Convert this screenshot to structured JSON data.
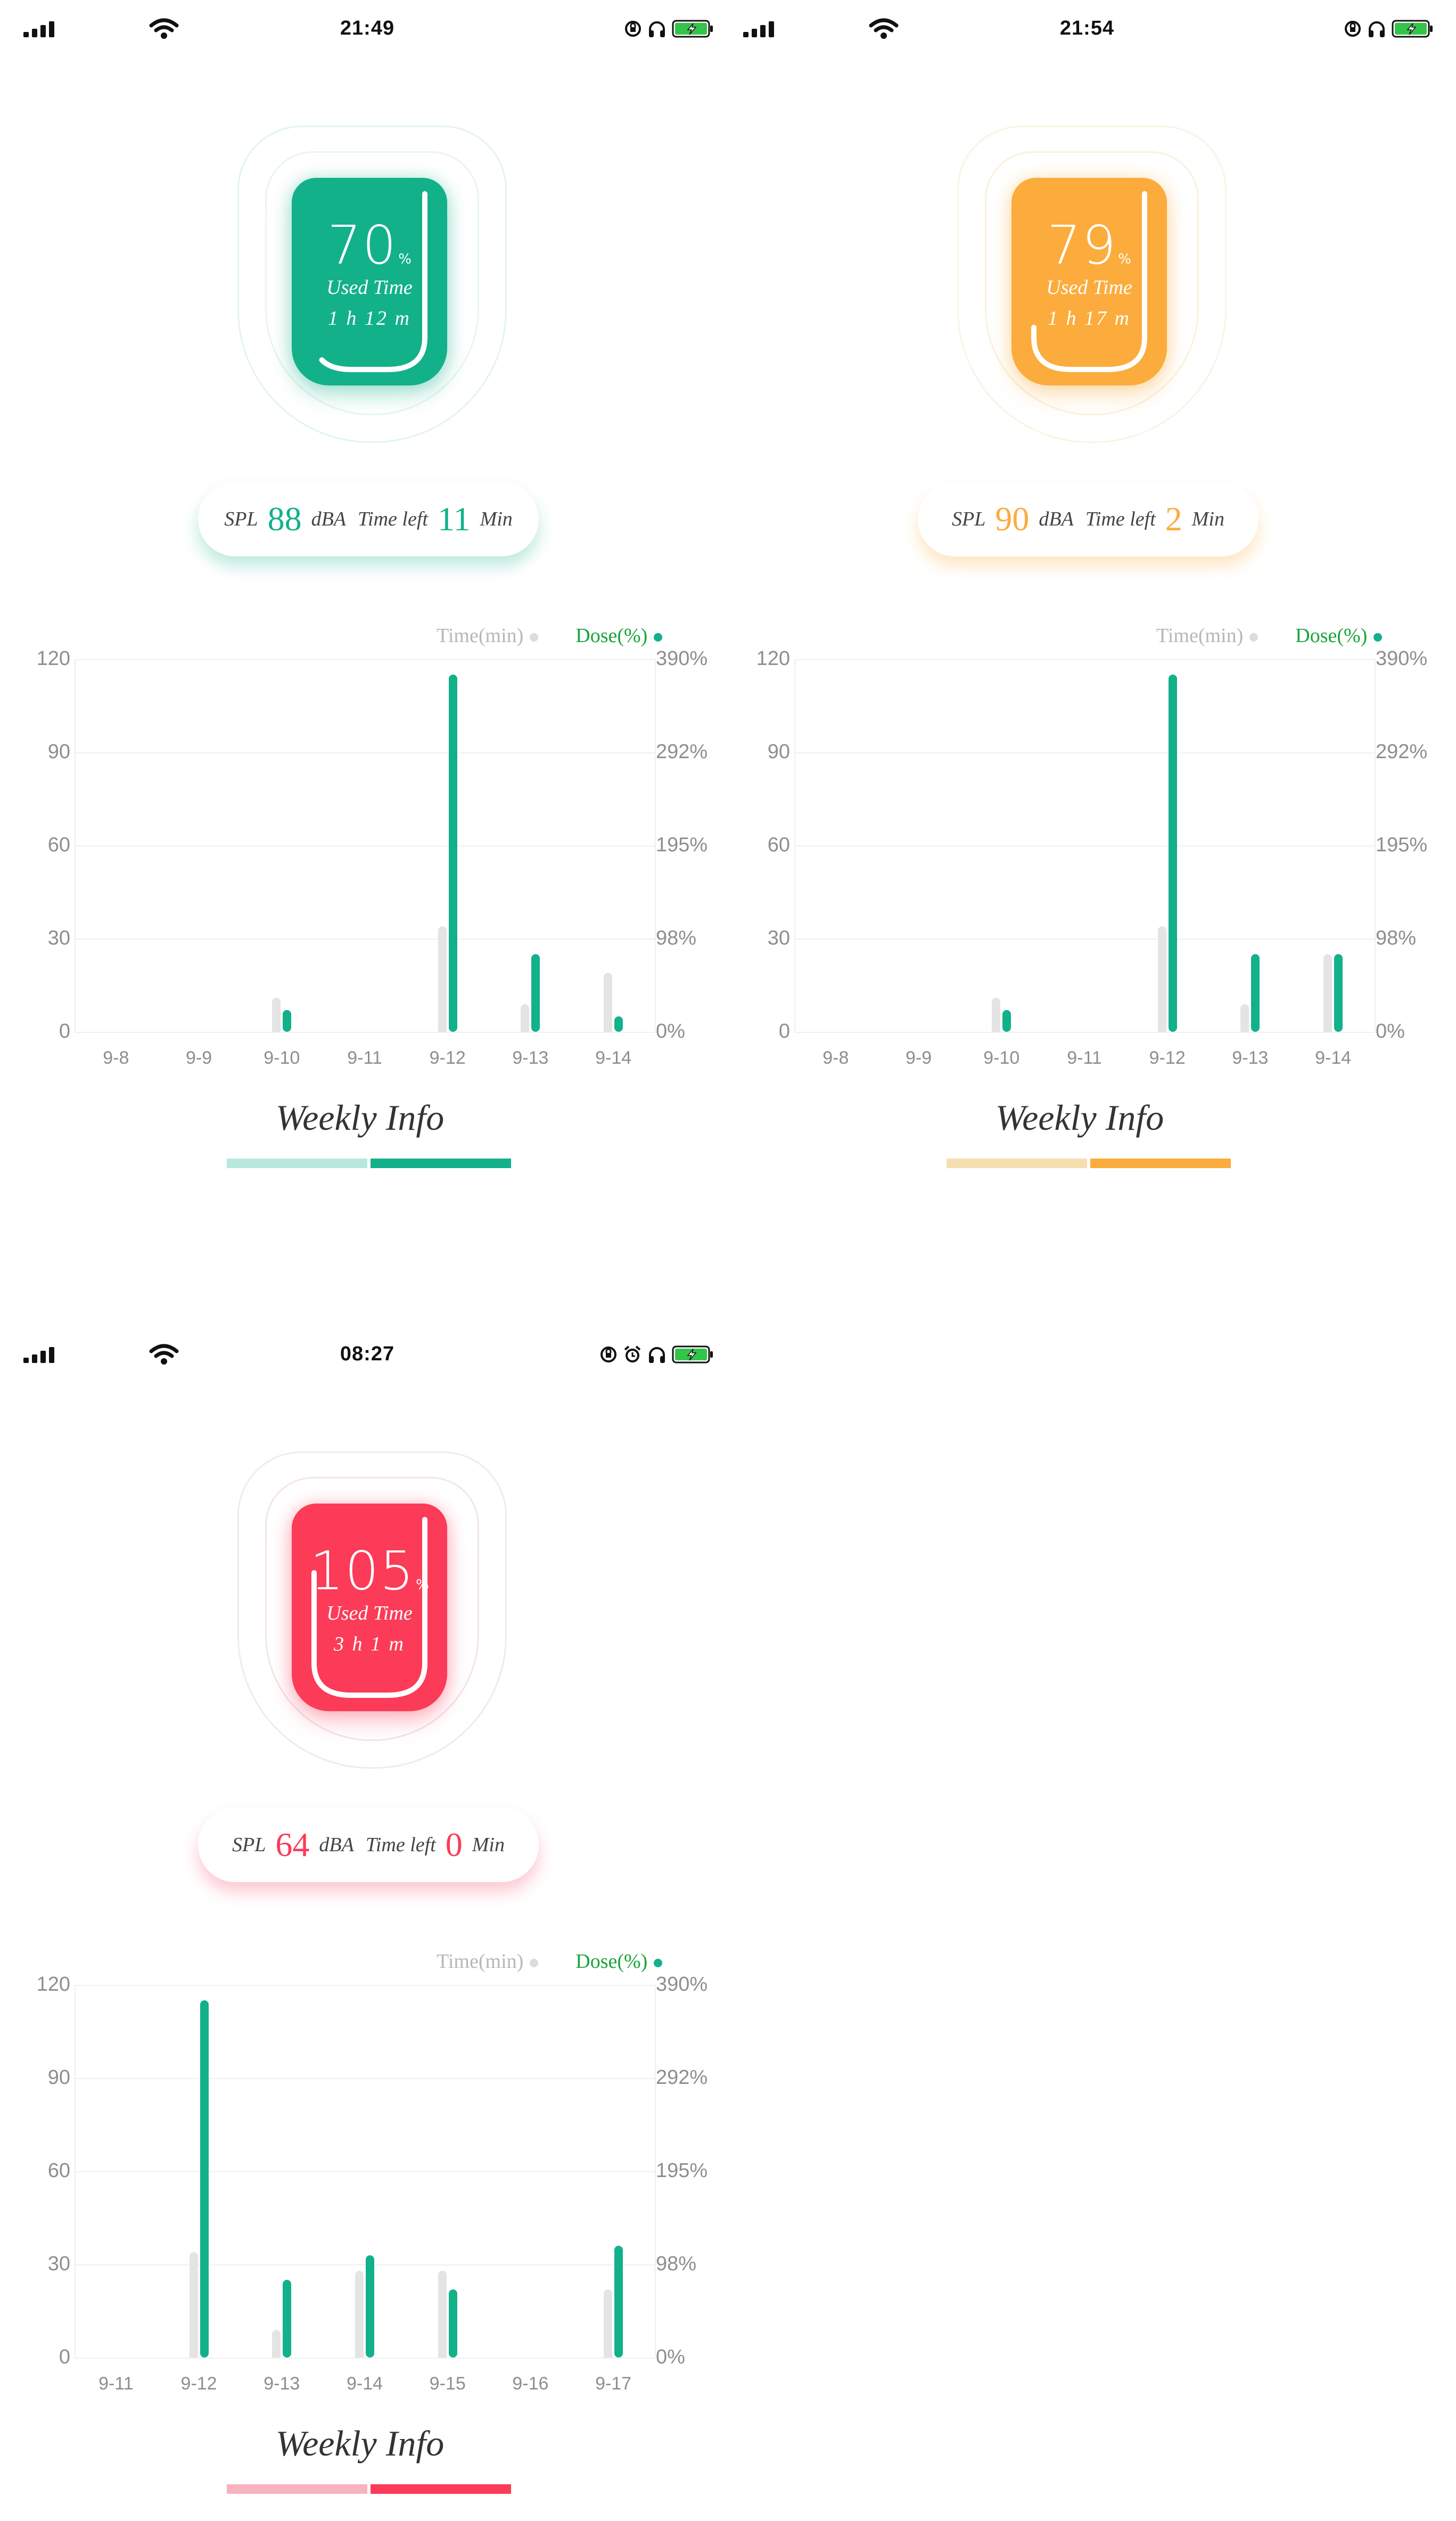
{
  "panels": [
    {
      "status": {
        "time": "21:49",
        "icons": [
          "signal-icon",
          "wifi-icon",
          "rotation-lock-icon",
          "headphones-icon",
          "battery-charging-icon"
        ]
      },
      "theme": {
        "accent": "#12b18a",
        "ring1": "#e3f4ef",
        "ring2": "#e8f6f1",
        "glow": "rgba(18,177,138,0.28)",
        "indicator_light": "#b8e8dc"
      },
      "badge": {
        "percent": "70",
        "unit": "%",
        "label": "Used Time",
        "duration": "1 h 12 m",
        "arc_fraction": 0.7
      },
      "spl": {
        "spl_label": "SPL",
        "spl_value": "88",
        "spl_unit": "dBA",
        "left_label": "Time left",
        "left_value": "11",
        "left_unit": "Min"
      },
      "chart_data": {
        "type": "bar",
        "legend": [
          "Time(min)",
          "Dose(%)"
        ],
        "categories": [
          "9-8",
          "9-9",
          "9-10",
          "9-11",
          "9-12",
          "9-13",
          "9-14"
        ],
        "y_left_ticks": [
          "120",
          "90",
          "60",
          "30",
          "0"
        ],
        "y_right_ticks": [
          "390%",
          "292%",
          "195%",
          "98%",
          "0%"
        ],
        "ylim": [
          0,
          120
        ],
        "series": [
          {
            "name": "Time(min)",
            "values": [
              0,
              0,
              11,
              0,
              34,
              9,
              19
            ]
          },
          {
            "name": "Dose(%)",
            "values": [
              0,
              0,
              7,
              0,
              115,
              25,
              5
            ]
          }
        ]
      },
      "weekly_title": "Weekly Info"
    },
    {
      "status": {
        "time": "21:54",
        "icons": [
          "signal-icon",
          "wifi-icon",
          "rotation-lock-icon",
          "headphones-icon",
          "battery-charging-icon"
        ]
      },
      "theme": {
        "accent": "#fbac3c",
        "ring1": "#fbf3e4",
        "ring2": "#fbf1df",
        "glow": "rgba(251,172,60,0.30)",
        "indicator_light": "#f6dfaf"
      },
      "badge": {
        "percent": "79",
        "unit": "%",
        "label": "Used Time",
        "duration": "1 h 17 m",
        "arc_fraction": 0.79
      },
      "spl": {
        "spl_label": "SPL",
        "spl_value": "90",
        "spl_unit": "dBA",
        "left_label": "Time left",
        "left_value": "2",
        "left_unit": "Min"
      },
      "chart_data": {
        "type": "bar",
        "legend": [
          "Time(min)",
          "Dose(%)"
        ],
        "categories": [
          "9-8",
          "9-9",
          "9-10",
          "9-11",
          "9-12",
          "9-13",
          "9-14"
        ],
        "y_left_ticks": [
          "120",
          "90",
          "60",
          "30",
          "0"
        ],
        "y_right_ticks": [
          "390%",
          "292%",
          "195%",
          "98%",
          "0%"
        ],
        "ylim": [
          0,
          120
        ],
        "series": [
          {
            "name": "Time(min)",
            "values": [
              0,
              0,
              11,
              0,
              34,
              9,
              25
            ]
          },
          {
            "name": "Dose(%)",
            "values": [
              0,
              0,
              7,
              0,
              115,
              25,
              25
            ]
          }
        ]
      },
      "weekly_title": "Weekly Info"
    },
    {
      "status": {
        "time": "08:27",
        "icons": [
          "signal-icon",
          "wifi-icon",
          "rotation-lock-icon",
          "alarm-icon",
          "headphones-icon",
          "battery-charging-icon"
        ]
      },
      "theme": {
        "accent": "#fb3b57",
        "ring1": "#f2eaec",
        "ring2": "#f3e5e8",
        "glow": "rgba(251,59,87,0.28)",
        "indicator_light": "#f9b3bf"
      },
      "badge": {
        "percent": "105",
        "unit": "%",
        "label": "Used Time",
        "duration": "3 h 1 m",
        "arc_fraction": 1.0
      },
      "spl": {
        "spl_label": "SPL",
        "spl_value": "64",
        "spl_unit": "dBA",
        "left_label": "Time left",
        "left_value": "0",
        "left_unit": "Min"
      },
      "chart_data": {
        "type": "bar",
        "legend": [
          "Time(min)",
          "Dose(%)"
        ],
        "categories": [
          "9-11",
          "9-12",
          "9-13",
          "9-14",
          "9-15",
          "9-16",
          "9-17"
        ],
        "y_left_ticks": [
          "120",
          "90",
          "60",
          "30",
          "0"
        ],
        "y_right_ticks": [
          "390%",
          "292%",
          "195%",
          "98%",
          "0%"
        ],
        "ylim": [
          0,
          120
        ],
        "series": [
          {
            "name": "Time(min)",
            "values": [
              0,
              34,
              9,
              28,
              28,
              0,
              22
            ]
          },
          {
            "name": "Dose(%)",
            "values": [
              0,
              115,
              25,
              33,
              22,
              0,
              36
            ]
          }
        ]
      },
      "weekly_title": "Weekly Info"
    }
  ]
}
